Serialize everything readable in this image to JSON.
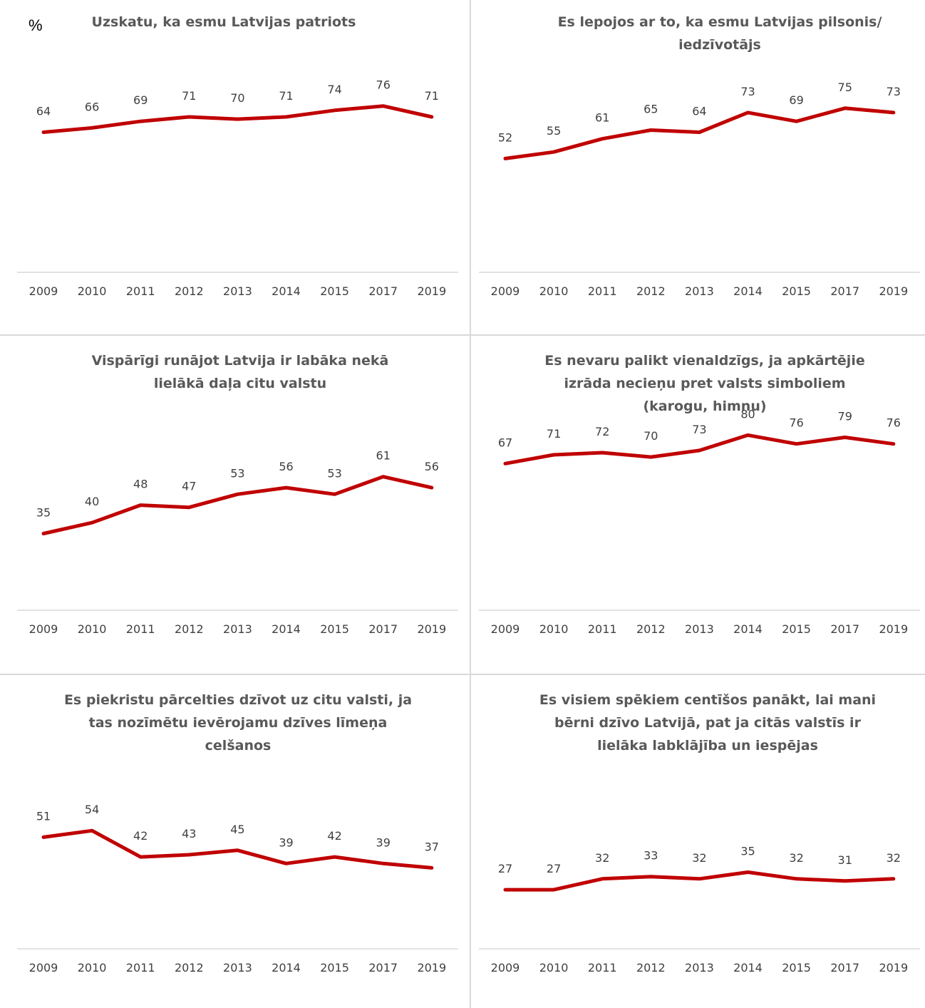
{
  "unit_label": "%",
  "colors": {
    "line": "#C00000",
    "axis": "#d9d9d9",
    "divider": "#d9d9d9",
    "title": "#595959",
    "text": "#404040"
  },
  "chart_data": [
    {
      "type": "line",
      "title": "Uzskatu, ka esmu Latvijas patriots",
      "categories": [
        "2009",
        "2010",
        "2011",
        "2012",
        "2013",
        "2014",
        "2015",
        "2017",
        "2019"
      ],
      "values": [
        64,
        66,
        69,
        71,
        70,
        71,
        74,
        76,
        71
      ]
    },
    {
      "type": "line",
      "title": "Es lepojos ar to, ka esmu Latvijas pilsonis/ iedzīvotājs",
      "categories": [
        "2009",
        "2010",
        "2011",
        "2012",
        "2013",
        "2014",
        "2015",
        "2017",
        "2019"
      ],
      "values": [
        52,
        55,
        61,
        65,
        64,
        73,
        69,
        75,
        73
      ]
    },
    {
      "type": "line",
      "title": "Vispārīgi runājot Latvija ir labāka nekā lielākā daļa citu valstu",
      "categories": [
        "2009",
        "2010",
        "2011",
        "2012",
        "2013",
        "2014",
        "2015",
        "2017",
        "2019"
      ],
      "values": [
        35,
        40,
        48,
        47,
        53,
        56,
        53,
        61,
        56
      ]
    },
    {
      "type": "line",
      "title": "Es nevaru palikt vienaldzīgs, ja apkārtējie izrāda necieņu pret valsts simboliem (karogu, himnu)",
      "categories": [
        "2009",
        "2010",
        "2011",
        "2012",
        "2013",
        "2014",
        "2015",
        "2017",
        "2019"
      ],
      "values": [
        67,
        71,
        72,
        70,
        73,
        80,
        76,
        79,
        76
      ]
    },
    {
      "type": "line",
      "title": "Es piekristu pārcelties dzīvot uz citu valsti, ja tas nozīmētu ievērojamu dzīves līmeņa celšanos",
      "categories": [
        "2009",
        "2010",
        "2011",
        "2012",
        "2013",
        "2014",
        "2015",
        "2017",
        "2019"
      ],
      "values": [
        51,
        54,
        42,
        43,
        45,
        39,
        42,
        39,
        37
      ]
    },
    {
      "type": "line",
      "title": "Es visiem spēkiem centīšos panākt, lai mani bērni dzīvo Latvijā, pat ja citās valstīs ir lielāka labklājība un iespējas",
      "categories": [
        "2009",
        "2010",
        "2011",
        "2012",
        "2013",
        "2014",
        "2015",
        "2017",
        "2019"
      ],
      "values": [
        27,
        27,
        32,
        33,
        32,
        35,
        32,
        31,
        32
      ]
    }
  ]
}
